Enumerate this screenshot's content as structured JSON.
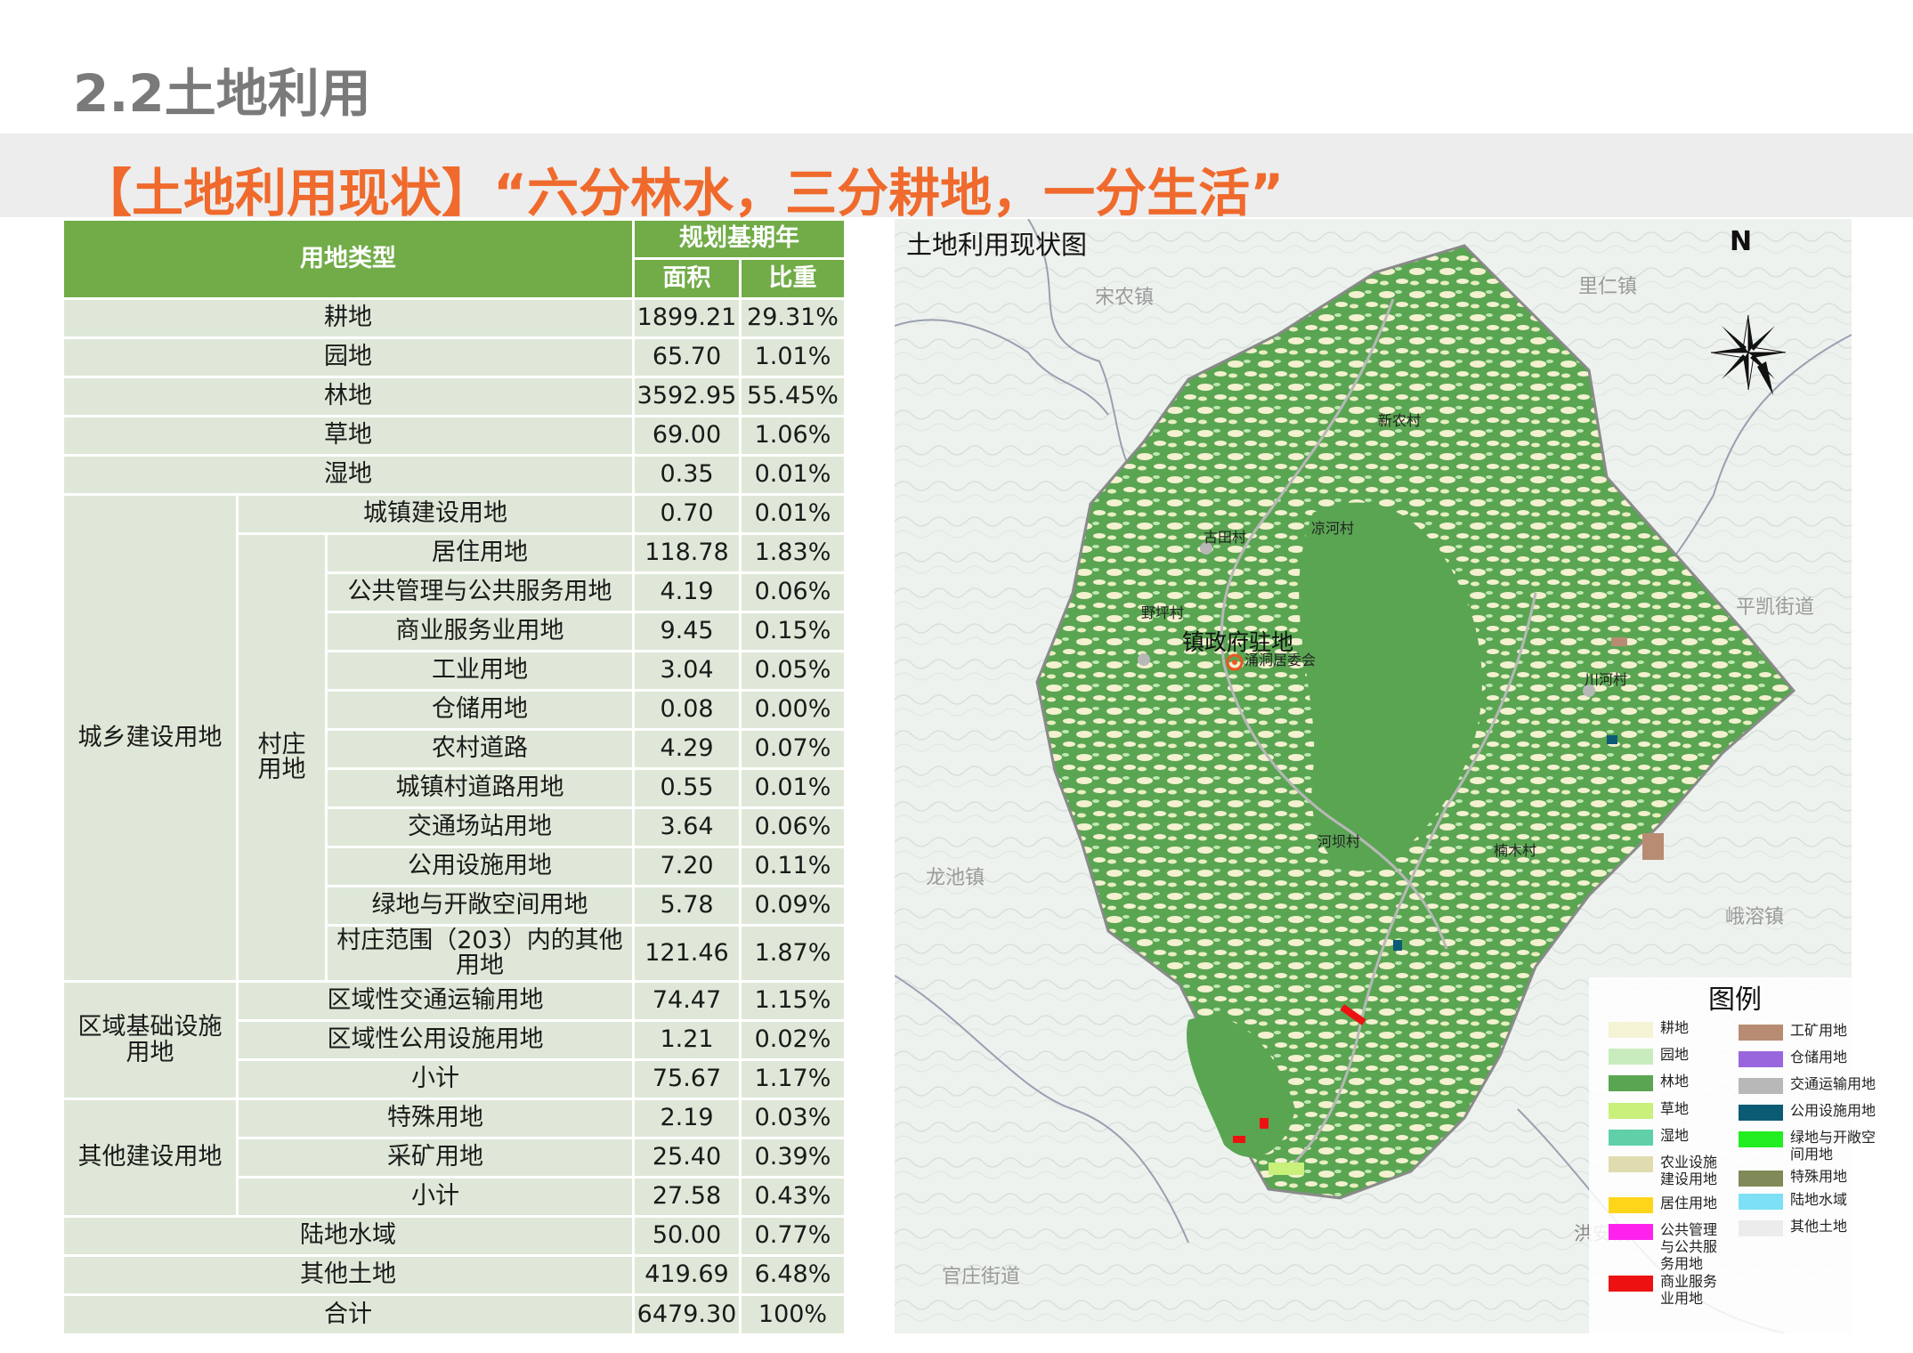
{
  "section_title": "2.2土地利用",
  "banner": "【土地利用现状】“六分林水，三分耕地，一分生活”",
  "table": {
    "header": {
      "type": "用地类型",
      "period": "规划基期年",
      "area": "面积",
      "ratio": "比重"
    },
    "rows": [
      {
        "name": "耕地",
        "area": "1899.21",
        "ratio": "29.31%"
      },
      {
        "name": "园地",
        "area": "65.70",
        "ratio": "1.01%"
      },
      {
        "name": "林地",
        "area": "3592.95",
        "ratio": "55.45%"
      },
      {
        "name": "草地",
        "area": "69.00",
        "ratio": "1.06%"
      },
      {
        "name": "湿地",
        "area": "0.35",
        "ratio": "0.01%"
      },
      {
        "name": "城镇建设用地",
        "area": "0.70",
        "ratio": "0.01%"
      },
      {
        "name": "居住用地",
        "area": "118.78",
        "ratio": "1.83%"
      },
      {
        "name": "公共管理与公共服务用地",
        "area": "4.19",
        "ratio": "0.06%"
      },
      {
        "name": "商业服务业用地",
        "area": "9.45",
        "ratio": "0.15%"
      },
      {
        "name": "工业用地",
        "area": "3.04",
        "ratio": "0.05%"
      },
      {
        "name": "仓储用地",
        "area": "0.08",
        "ratio": "0.00%"
      },
      {
        "name": "农村道路",
        "area": "4.29",
        "ratio": "0.07%"
      },
      {
        "name": "城镇村道路用地",
        "area": "0.55",
        "ratio": "0.01%"
      },
      {
        "name": "交通场站用地",
        "area": "3.64",
        "ratio": "0.06%"
      },
      {
        "name": "公用设施用地",
        "area": "7.20",
        "ratio": "0.11%"
      },
      {
        "name": "绿地与开敞空间用地",
        "area": "5.78",
        "ratio": "0.09%"
      },
      {
        "name": "村庄范围（203）内的其他用地",
        "area": "121.46",
        "ratio": "1.87%"
      },
      {
        "name": "区域性交通运输用地",
        "area": "74.47",
        "ratio": "1.15%"
      },
      {
        "name": "区域性公用设施用地",
        "area": "1.21",
        "ratio": "0.02%"
      },
      {
        "name": "小计",
        "area": "75.67",
        "ratio": "1.17%"
      },
      {
        "name": "特殊用地",
        "area": "2.19",
        "ratio": "0.03%"
      },
      {
        "name": "采矿用地",
        "area": "25.40",
        "ratio": "0.39%"
      },
      {
        "name": "小计",
        "area": "27.58",
        "ratio": "0.43%"
      },
      {
        "name": "陆地水域",
        "area": "50.00",
        "ratio": "0.77%"
      },
      {
        "name": "其他土地",
        "area": "419.69",
        "ratio": "6.48%"
      },
      {
        "name": "合计",
        "area": "6479.30",
        "ratio": "100%"
      }
    ],
    "groups": {
      "urban_rural": "城乡建设用地",
      "village": "村庄用地",
      "regional": "区域基础设施用地",
      "other": "其他建设用地"
    }
  },
  "map": {
    "title": "土地利用现状图",
    "north": "N",
    "surrounding": [
      "宋农镇",
      "里仁镇",
      "平凯街道",
      "龙池镇",
      "峨溶镇",
      "洪安镇",
      "官庄街道"
    ],
    "villages": [
      "新农村",
      "凉河村",
      "古田村",
      "野坪村",
      "涌洞居委会",
      "川河村",
      "河坝村",
      "楠木村"
    ],
    "town_center": "镇政府驻地",
    "colors": {
      "forest": "#5aa552",
      "farmland": "#f3f1cf",
      "garden": "#bfe8b2"
    },
    "legend": {
      "title": "图例",
      "items": [
        {
          "label": "耕地",
          "color": "#f4f3d4"
        },
        {
          "label": "园地",
          "color": "#c9ecbd"
        },
        {
          "label": "林地",
          "color": "#5aa552"
        },
        {
          "label": "草地",
          "color": "#c8f07a"
        },
        {
          "label": "湿地",
          "color": "#5fd0a8"
        },
        {
          "label": "农业设施建设用地",
          "color": "#e0dcb0"
        },
        {
          "label": "居住用地",
          "color": "#ffd51a"
        },
        {
          "label": "公共管理与公共服务用地",
          "color": "#ff22ee"
        },
        {
          "label": "商业服务业用地",
          "color": "#ee1111"
        },
        {
          "label": "工矿用地",
          "color": "#b88c73"
        },
        {
          "label": "仓储用地",
          "color": "#9a66dd"
        },
        {
          "label": "交通运输用地",
          "color": "#b8b8b8"
        },
        {
          "label": "公用设施用地",
          "color": "#0b5b74"
        },
        {
          "label": "绿地与开敞空间用地",
          "color": "#22ee22"
        },
        {
          "label": "特殊用地",
          "color": "#7f8a58"
        },
        {
          "label": "陆地水域",
          "color": "#7ee0f5"
        },
        {
          "label": "其他土地",
          "color": "#ececec"
        }
      ]
    }
  }
}
